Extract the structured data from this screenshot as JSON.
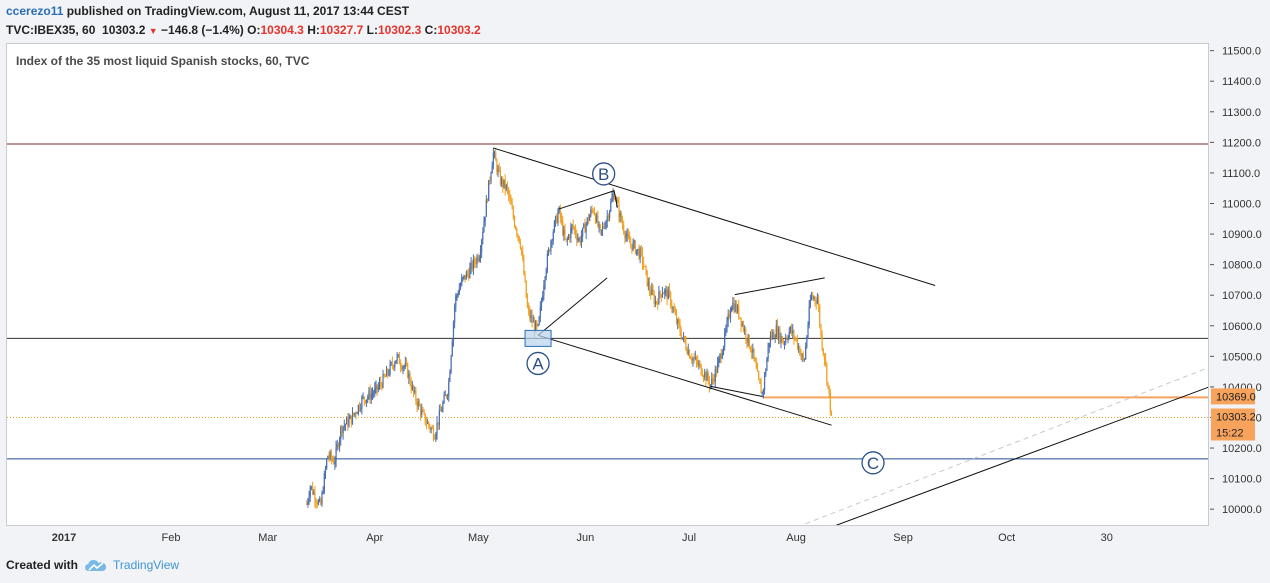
{
  "header": {
    "user": "ccerezo11",
    "published": " published on TradingView.com, August 11, 2017 13:44 CEST",
    "symbol": "TVC:IBEX35, 60",
    "last": "10303.2",
    "change": "−146.8 (−1.4%)",
    "o_label": "O:",
    "o": "10304.3",
    "h_label": "H:",
    "h": "10327.7",
    "l_label": "L:",
    "l": "10302.3",
    "c_label": "C:",
    "c": "10303.2"
  },
  "footer": {
    "created": "Created with",
    "brand": "TradingView"
  },
  "colors": {
    "up": "#4a6fb0",
    "down": "#f0a020",
    "orange_line": "#f8a35b",
    "resistance": "#7b2b2b",
    "support": "#1f4e96",
    "price_tag": "#f8a35b"
  },
  "chart_data": {
    "type": "candlestick",
    "title": "Index of the 35 most liquid Spanish stocks, 60, TVC",
    "y_ticks": [
      10000.0,
      10100.0,
      10200.0,
      10300.0,
      10400.0,
      10500.0,
      10600.0,
      10700.0,
      10800.0,
      10900.0,
      11000.0,
      11100.0,
      11200.0,
      11300.0,
      11400.0,
      11500.0
    ],
    "x_ticks": [
      "2017",
      "Feb",
      "Mar",
      "Apr",
      "May",
      "Jun",
      "Jul",
      "Aug",
      "Sep",
      "Oct",
      "30"
    ],
    "ylim": [
      9945,
      11525
    ],
    "price_tags": [
      {
        "label": "10369.0",
        "value": 10369.0
      },
      {
        "label": "10303.2",
        "value": 10303.2
      },
      {
        "label": "15:22",
        "value": null
      }
    ],
    "horizontal_lines": [
      {
        "name": "resistance",
        "value": 11198
      },
      {
        "name": "pivot",
        "value": 10562
      },
      {
        "name": "support",
        "value": 10168
      },
      {
        "name": "last-price",
        "value": 10303.2
      },
      {
        "name": "target",
        "value": 10369
      }
    ],
    "wave_labels": [
      "A",
      "B",
      "C"
    ],
    "price_path": [
      [
        "2017-03-12",
        10020
      ],
      [
        "2017-03-13",
        10080
      ],
      [
        "2017-03-16",
        10010
      ],
      [
        "2017-03-18",
        10180
      ],
      [
        "2017-03-20",
        10160
      ],
      [
        "2017-03-22",
        10270
      ],
      [
        "2017-03-25",
        10300
      ],
      [
        "2017-03-28",
        10360
      ],
      [
        "2017-04-01",
        10390
      ],
      [
        "2017-04-04",
        10440
      ],
      [
        "2017-04-07",
        10500
      ],
      [
        "2017-04-10",
        10460
      ],
      [
        "2017-04-12",
        10380
      ],
      [
        "2017-04-15",
        10300
      ],
      [
        "2017-04-18",
        10250
      ],
      [
        "2017-04-20",
        10330
      ],
      [
        "2017-04-22",
        10400
      ],
      [
        "2017-04-24",
        10690
      ],
      [
        "2017-04-26",
        10750
      ],
      [
        "2017-04-28",
        10780
      ],
      [
        "2017-05-01",
        10840
      ],
      [
        "2017-05-03",
        11000
      ],
      [
        "2017-05-05",
        11170
      ],
      [
        "2017-05-07",
        11080
      ],
      [
        "2017-05-09",
        11050
      ],
      [
        "2017-05-11",
        10950
      ],
      [
        "2017-05-13",
        10870
      ],
      [
        "2017-05-15",
        10650
      ],
      [
        "2017-05-17",
        10600
      ],
      [
        "2017-05-18",
        10590
      ],
      [
        "2017-05-20",
        10780
      ],
      [
        "2017-05-22",
        10900
      ],
      [
        "2017-05-24",
        10980
      ],
      [
        "2017-05-26",
        10870
      ],
      [
        "2017-05-28",
        10930
      ],
      [
        "2017-05-30",
        10880
      ],
      [
        "2017-06-01",
        10940
      ],
      [
        "2017-06-03",
        10990
      ],
      [
        "2017-06-05",
        10900
      ],
      [
        "2017-06-07",
        10960
      ],
      [
        "2017-06-09",
        11040
      ],
      [
        "2017-06-11",
        10950
      ],
      [
        "2017-06-13",
        10880
      ],
      [
        "2017-06-15",
        10860
      ],
      [
        "2017-06-17",
        10830
      ],
      [
        "2017-06-19",
        10730
      ],
      [
        "2017-06-21",
        10680
      ],
      [
        "2017-06-23",
        10720
      ],
      [
        "2017-06-25",
        10700
      ],
      [
        "2017-06-27",
        10620
      ],
      [
        "2017-06-29",
        10560
      ],
      [
        "2017-07-01",
        10510
      ],
      [
        "2017-07-03",
        10480
      ],
      [
        "2017-07-05",
        10450
      ],
      [
        "2017-07-07",
        10410
      ],
      [
        "2017-07-09",
        10470
      ],
      [
        "2017-07-11",
        10560
      ],
      [
        "2017-07-13",
        10680
      ],
      [
        "2017-07-15",
        10650
      ],
      [
        "2017-07-17",
        10580
      ],
      [
        "2017-07-19",
        10520
      ],
      [
        "2017-07-21",
        10410
      ],
      [
        "2017-07-22",
        10380
      ],
      [
        "2017-07-24",
        10560
      ],
      [
        "2017-07-26",
        10590
      ],
      [
        "2017-07-28",
        10550
      ],
      [
        "2017-07-30",
        10590
      ],
      [
        "2017-08-01",
        10550
      ],
      [
        "2017-08-03",
        10480
      ],
      [
        "2017-08-05",
        10700
      ],
      [
        "2017-08-07",
        10690
      ],
      [
        "2017-08-08",
        10560
      ],
      [
        "2017-08-09",
        10500
      ],
      [
        "2017-08-10",
        10400
      ],
      [
        "2017-08-11",
        10303
      ]
    ]
  }
}
